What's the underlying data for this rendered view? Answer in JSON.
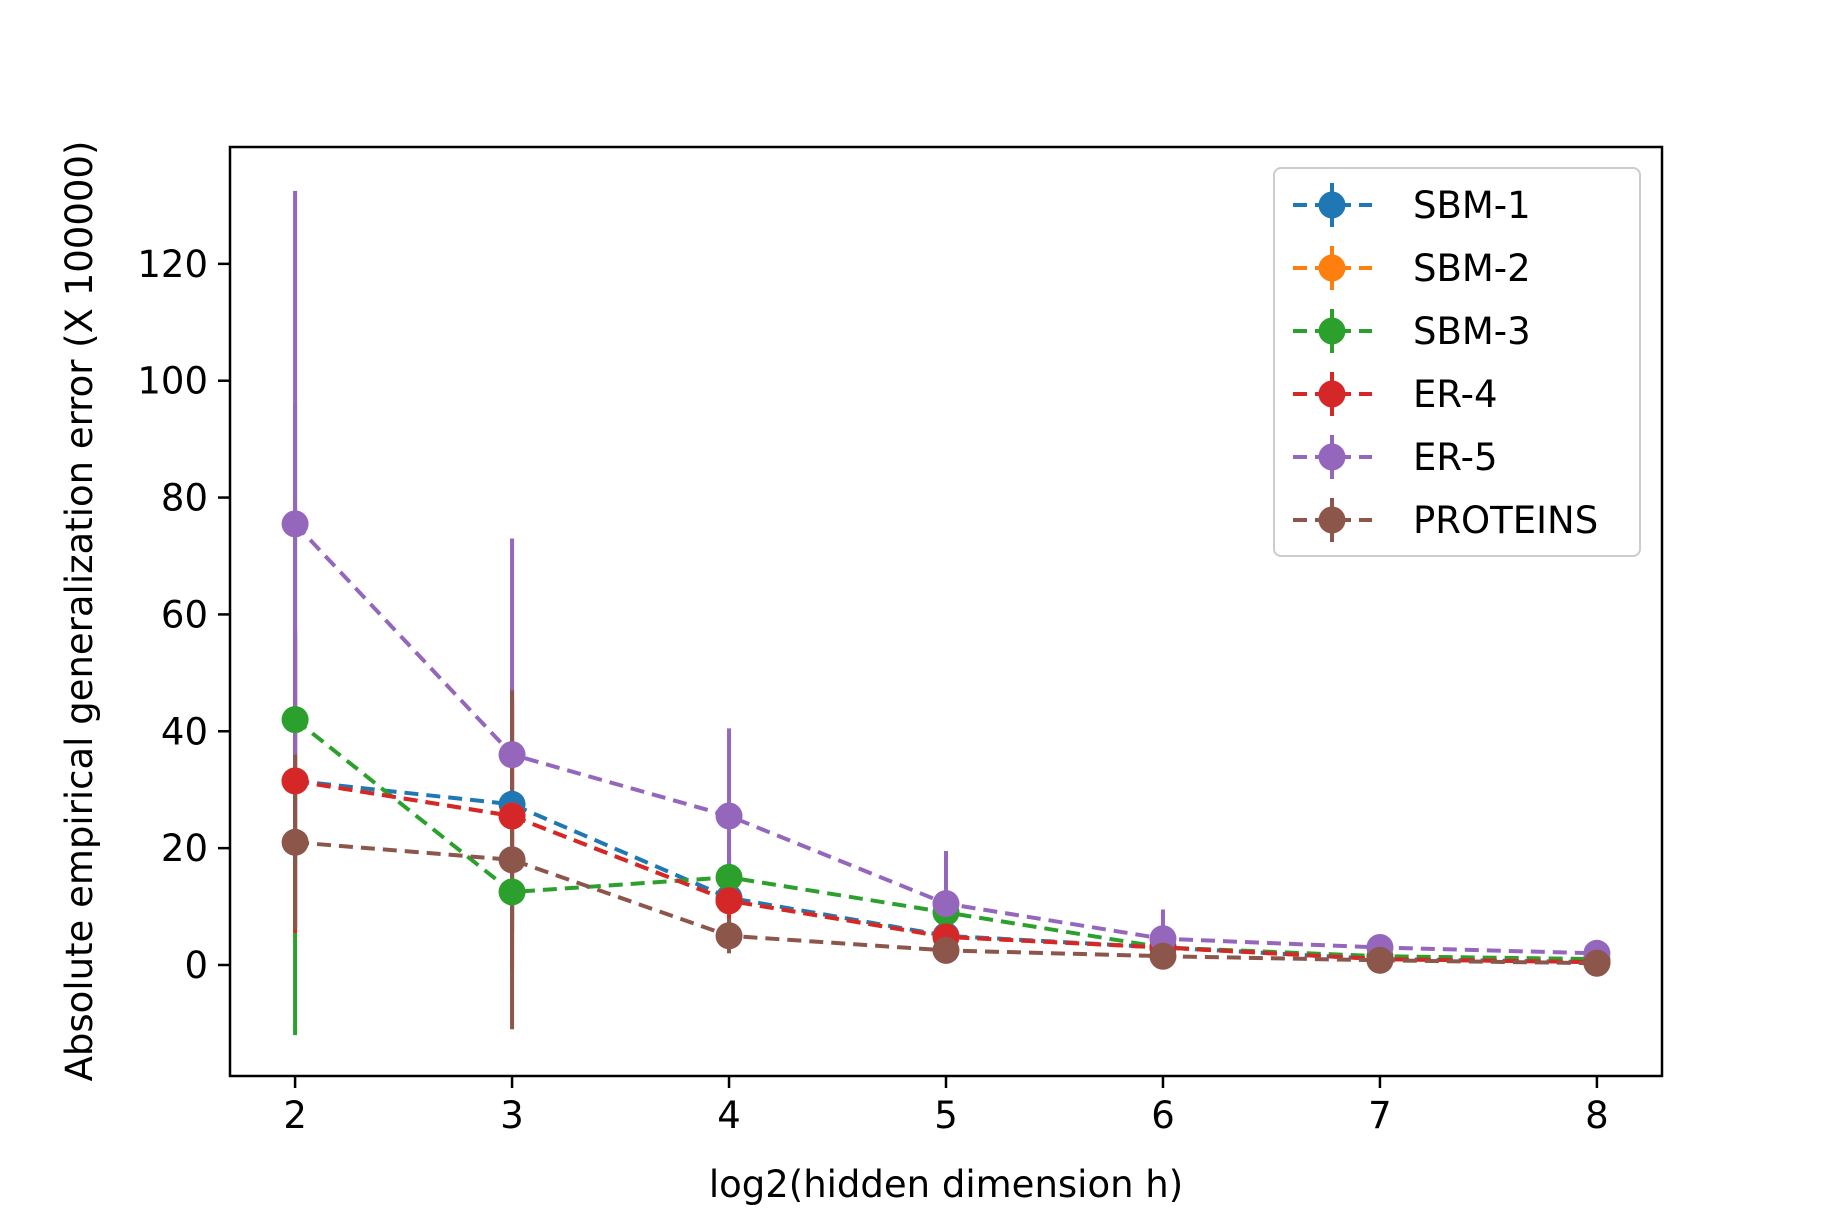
{
  "chart_data": {
    "type": "line",
    "title": "",
    "xlabel": "log2(hidden dimension h)",
    "ylabel": "Absolute empirical generalization error (X 100000)",
    "xlim": [
      1.7,
      8.3
    ],
    "ylim": [
      -19,
      140
    ],
    "x_ticks": [
      2,
      3,
      4,
      5,
      6,
      7,
      8
    ],
    "y_ticks": [
      0,
      20,
      40,
      60,
      80,
      100,
      120
    ],
    "x": [
      2,
      3,
      4,
      5,
      6,
      7,
      8
    ],
    "grid": false,
    "legend_position": "upper right",
    "line_style": "dashed",
    "marker": "circle",
    "series": [
      {
        "name": "SBM-1",
        "color": "#1f77b4",
        "values": [
          31.5,
          27.5,
          11.5,
          5.0,
          3.0,
          1.0,
          0.5
        ],
        "errors": [
          25,
          20,
          8,
          3,
          2,
          1,
          0.5
        ]
      },
      {
        "name": "SBM-2",
        "color": "#ff7f0e",
        "values": [
          31.5,
          25.5,
          11.0,
          4.8,
          3.0,
          1.0,
          0.5
        ],
        "errors": [
          25,
          20,
          8,
          3,
          2,
          1,
          0.5
        ]
      },
      {
        "name": "SBM-3",
        "color": "#2ca02c",
        "values": [
          42.0,
          12.5,
          15.0,
          9.0,
          3.0,
          1.5,
          1.0
        ],
        "errors": [
          54,
          12,
          6,
          4,
          2,
          1,
          0.5
        ]
      },
      {
        "name": "ER-4",
        "color": "#d62728",
        "values": [
          31.5,
          25.5,
          11.0,
          4.8,
          3.0,
          1.0,
          0.5
        ],
        "errors": [
          26,
          20,
          8,
          3,
          2,
          1,
          0.5
        ]
      },
      {
        "name": "ER-5",
        "color": "#9467bd",
        "values": [
          75.5,
          36.0,
          25.5,
          10.5,
          4.5,
          3.0,
          2.0
        ],
        "errors": [
          57,
          37,
          15,
          9,
          5,
          2,
          1
        ]
      },
      {
        "name": "PROTEINS",
        "color": "#8c564b",
        "values": [
          21.0,
          18.0,
          5.0,
          2.5,
          1.5,
          0.8,
          0.3
        ],
        "errors": [
          15,
          29,
          3,
          1.5,
          1,
          0.5,
          0.3
        ]
      }
    ]
  }
}
